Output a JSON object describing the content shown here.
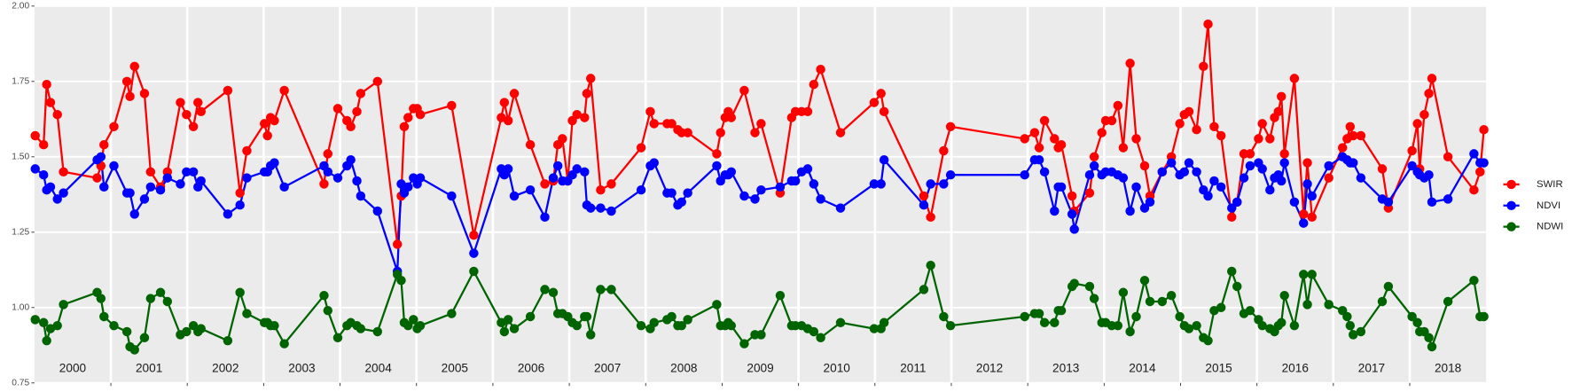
{
  "chart_data": {
    "type": "line",
    "xlim": [
      2000,
      2019
    ],
    "xticks": [
      2001,
      2002,
      2003,
      2004,
      2005,
      2006,
      2007,
      2008,
      2009,
      2010,
      2011,
      2012,
      2013,
      2014,
      2015,
      2016,
      2017,
      2018
    ],
    "year_labels": [
      2000,
      2001,
      2002,
      2003,
      2004,
      2005,
      2006,
      2007,
      2008,
      2009,
      2010,
      2011,
      2012,
      2013,
      2014,
      2015,
      2016,
      2017,
      2018
    ],
    "ylim": [
      0.75,
      2.0
    ],
    "yticks": [
      {
        "value": 0.75,
        "label": "0.75"
      },
      {
        "value": 1.0,
        "label": "1.00"
      },
      {
        "value": 1.25,
        "label": "1.25"
      },
      {
        "value": 1.5,
        "label": "1.50"
      },
      {
        "value": 1.75,
        "label": "1.75"
      },
      {
        "value": 2.0,
        "label": "2.00"
      }
    ],
    "grid": true,
    "legend": "right",
    "x": [
      2000.01,
      2000.12,
      2000.16,
      2000.21,
      2000.3,
      2000.38,
      2000.82,
      2000.87,
      2000.91,
      2001.04,
      2001.21,
      2001.25,
      2001.31,
      2001.44,
      2001.52,
      2001.65,
      2001.74,
      2001.91,
      2001.99,
      2002.08,
      2002.14,
      2002.18,
      2002.53,
      2002.69,
      2002.78,
      2003.01,
      2003.05,
      2003.09,
      2003.14,
      2003.27,
      2003.79,
      2003.84,
      2003.97,
      2004.09,
      2004.14,
      2004.22,
      2004.27,
      2004.49,
      2004.75,
      2004.8,
      2004.84,
      2004.89,
      2004.96,
      2005.01,
      2005.05,
      2005.46,
      2005.75,
      2006.11,
      2006.15,
      2006.2,
      2006.28,
      2006.49,
      2006.68,
      2006.79,
      2006.85,
      2006.91,
      2006.98,
      2007.04,
      2007.1,
      2007.2,
      2007.23,
      2007.28,
      2007.41,
      2007.55,
      2007.94,
      2008.06,
      2008.11,
      2008.28,
      2008.34,
      2008.42,
      2008.47,
      2008.55,
      2008.93,
      2008.98,
      2009.04,
      2009.08,
      2009.12,
      2009.29,
      2009.43,
      2009.51,
      2009.76,
      2009.91,
      2009.96,
      2010.04,
      2010.12,
      2010.2,
      2010.29,
      2010.55,
      2010.99,
      2011.08,
      2011.12,
      2011.64,
      2011.73,
      2011.9,
      2011.99,
      2012.96,
      2013.09,
      2013.15,
      2013.22,
      2013.35,
      2013.4,
      2013.44,
      2013.58,
      2013.61,
      2013.81,
      2013.87,
      2013.97,
      2014.02,
      2014.1,
      2014.18,
      2014.25,
      2014.34,
      2014.42,
      2014.53,
      2014.6,
      2014.76,
      2014.88,
      2014.99,
      2015.05,
      2015.11,
      2015.21,
      2015.3,
      2015.36,
      2015.44,
      2015.53,
      2015.67,
      2015.74,
      2015.83,
      2015.91,
      2016.02,
      2016.07,
      2016.17,
      2016.23,
      2016.28,
      2016.32,
      2016.36,
      2016.49,
      2016.61,
      2016.66,
      2016.72,
      2016.94,
      2017.12,
      2017.18,
      2017.22,
      2017.26,
      2017.36,
      2017.64,
      2017.72,
      2018.03,
      2018.1,
      2018.13,
      2018.19,
      2018.25,
      2018.29,
      2018.5,
      2018.84,
      2018.92,
      2018.97
    ],
    "series": [
      {
        "name": "SWIR",
        "color": "#ff0000",
        "values": [
          1.57,
          1.54,
          1.74,
          1.68,
          1.64,
          1.45,
          1.43,
          1.47,
          1.54,
          1.6,
          1.75,
          1.7,
          1.8,
          1.71,
          1.45,
          1.4,
          1.45,
          1.68,
          1.64,
          1.6,
          1.68,
          1.65,
          1.72,
          1.38,
          1.52,
          1.61,
          1.57,
          1.63,
          1.62,
          1.72,
          1.41,
          1.51,
          1.66,
          1.62,
          1.6,
          1.65,
          1.71,
          1.75,
          1.21,
          1.37,
          1.6,
          1.63,
          1.66,
          1.66,
          1.64,
          1.67,
          1.24,
          1.63,
          1.68,
          1.62,
          1.71,
          1.54,
          1.41,
          1.42,
          1.54,
          1.56,
          1.42,
          1.62,
          1.64,
          1.63,
          1.71,
          1.76,
          1.39,
          1.41,
          1.53,
          1.65,
          1.61,
          1.61,
          1.61,
          1.59,
          1.58,
          1.58,
          1.51,
          1.58,
          1.63,
          1.65,
          1.63,
          1.72,
          1.58,
          1.61,
          1.38,
          1.63,
          1.65,
          1.65,
          1.65,
          1.74,
          1.79,
          1.58,
          1.68,
          1.71,
          1.65,
          1.37,
          1.3,
          1.52,
          1.6,
          1.56,
          1.58,
          1.53,
          1.62,
          1.56,
          1.53,
          1.54,
          1.37,
          1.32,
          1.38,
          1.5,
          1.58,
          1.62,
          1.62,
          1.67,
          1.53,
          1.81,
          1.56,
          1.47,
          1.37,
          1.45,
          1.5,
          1.61,
          1.64,
          1.65,
          1.59,
          1.8,
          1.94,
          1.6,
          1.57,
          1.3,
          1.35,
          1.51,
          1.51,
          1.56,
          1.61,
          1.56,
          1.63,
          1.65,
          1.7,
          1.51,
          1.76,
          1.31,
          1.48,
          1.3,
          1.43,
          1.53,
          1.56,
          1.6,
          1.57,
          1.57,
          1.46,
          1.33,
          1.52,
          1.61,
          1.46,
          1.64,
          1.71,
          1.76,
          1.5,
          1.39,
          1.45,
          1.59
        ]
      },
      {
        "name": "NDVI",
        "color": "#0000ff",
        "values": [
          1.46,
          1.44,
          1.39,
          1.4,
          1.36,
          1.38,
          1.49,
          1.5,
          1.4,
          1.47,
          1.38,
          1.38,
          1.31,
          1.36,
          1.4,
          1.39,
          1.43,
          1.41,
          1.45,
          1.45,
          1.4,
          1.42,
          1.31,
          1.34,
          1.43,
          1.45,
          1.45,
          1.47,
          1.48,
          1.4,
          1.47,
          1.45,
          1.43,
          1.47,
          1.49,
          1.42,
          1.37,
          1.32,
          1.12,
          1.41,
          1.38,
          1.4,
          1.43,
          1.41,
          1.43,
          1.37,
          1.18,
          1.46,
          1.44,
          1.46,
          1.37,
          1.39,
          1.3,
          1.43,
          1.47,
          1.42,
          1.42,
          1.44,
          1.46,
          1.45,
          1.34,
          1.33,
          1.33,
          1.32,
          1.39,
          1.47,
          1.48,
          1.38,
          1.38,
          1.34,
          1.35,
          1.38,
          1.47,
          1.42,
          1.44,
          1.44,
          1.45,
          1.37,
          1.36,
          1.39,
          1.4,
          1.42,
          1.42,
          1.45,
          1.46,
          1.41,
          1.36,
          1.33,
          1.41,
          1.41,
          1.49,
          1.34,
          1.41,
          1.41,
          1.44,
          1.44,
          1.49,
          1.49,
          1.45,
          1.32,
          1.4,
          1.4,
          1.31,
          1.26,
          1.44,
          1.47,
          1.44,
          1.45,
          1.45,
          1.44,
          1.43,
          1.32,
          1.4,
          1.33,
          1.35,
          1.45,
          1.48,
          1.44,
          1.45,
          1.48,
          1.45,
          1.39,
          1.37,
          1.42,
          1.4,
          1.33,
          1.35,
          1.43,
          1.47,
          1.48,
          1.46,
          1.39,
          1.43,
          1.44,
          1.42,
          1.48,
          1.35,
          1.28,
          1.41,
          1.37,
          1.47,
          1.5,
          1.49,
          1.48,
          1.48,
          1.43,
          1.36,
          1.35,
          1.47,
          1.45,
          1.44,
          1.43,
          1.44,
          1.35,
          1.36,
          1.51,
          1.48,
          1.48
        ]
      },
      {
        "name": "NDWI",
        "color": "#006400",
        "values": [
          0.96,
          0.95,
          0.89,
          0.93,
          0.94,
          1.01,
          1.05,
          1.03,
          0.97,
          0.94,
          0.92,
          0.87,
          0.86,
          0.9,
          1.03,
          1.05,
          1.02,
          0.91,
          0.92,
          0.94,
          0.92,
          0.93,
          0.89,
          1.05,
          0.98,
          0.95,
          0.95,
          0.94,
          0.94,
          0.88,
          1.04,
          0.99,
          0.9,
          0.94,
          0.95,
          0.94,
          0.93,
          0.92,
          1.11,
          1.09,
          0.95,
          0.94,
          0.96,
          0.93,
          0.94,
          0.98,
          1.12,
          0.95,
          0.92,
          0.96,
          0.93,
          0.97,
          1.06,
          1.05,
          0.98,
          0.98,
          0.97,
          0.95,
          0.94,
          0.97,
          0.97,
          0.91,
          1.06,
          1.06,
          0.94,
          0.93,
          0.95,
          0.96,
          0.97,
          0.94,
          0.94,
          0.96,
          1.01,
          0.94,
          0.94,
          0.95,
          0.94,
          0.88,
          0.91,
          0.91,
          1.04,
          0.94,
          0.94,
          0.94,
          0.93,
          0.92,
          0.9,
          0.95,
          0.93,
          0.93,
          0.95,
          1.06,
          1.14,
          0.97,
          0.94,
          0.97,
          0.98,
          0.98,
          0.95,
          0.95,
          0.99,
          0.99,
          1.07,
          1.08,
          1.07,
          1.03,
          0.95,
          0.95,
          0.94,
          0.94,
          1.05,
          0.92,
          0.97,
          1.09,
          1.02,
          1.02,
          1.04,
          0.97,
          0.94,
          0.93,
          0.94,
          0.9,
          0.89,
          0.99,
          1.0,
          1.12,
          1.07,
          0.98,
          0.99,
          0.96,
          0.94,
          0.93,
          0.92,
          0.94,
          0.95,
          1.04,
          0.94,
          1.11,
          1.01,
          1.11,
          1.01,
          0.99,
          0.97,
          0.94,
          0.91,
          0.92,
          1.02,
          1.07,
          0.97,
          0.95,
          0.92,
          0.92,
          0.9,
          0.87,
          1.02,
          1.09,
          0.97,
          0.97
        ]
      }
    ]
  }
}
